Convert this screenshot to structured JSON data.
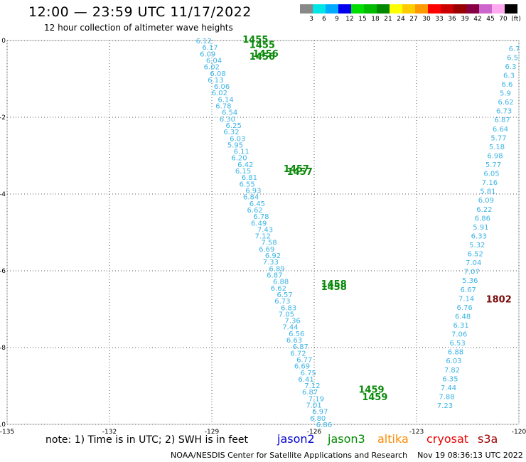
{
  "header": {
    "title": "12:00 — 23:59 UTC 11/17/2022",
    "subtitle": "12 hour collection of altimeter wave heights"
  },
  "color_scale": {
    "labels": [
      "3",
      "6",
      "9",
      "12",
      "15",
      "18",
      "21",
      "24",
      "27",
      "30",
      "33",
      "36",
      "39",
      "42",
      "45",
      "70",
      "(ft)"
    ],
    "colors": [
      "#888888",
      "#00e6e6",
      "#00aaff",
      "#0000ee",
      "#00dd00",
      "#00bb00",
      "#008800",
      "#ffff00",
      "#ffcc00",
      "#ff9900",
      "#ff0000",
      "#cc0000",
      "#990000",
      "#880044",
      "#cc66cc",
      "#ffaaee",
      "#000000"
    ]
  },
  "axes": {
    "x_ticks": [
      "-135",
      "-132",
      "-129",
      "-126",
      "-123",
      "-120"
    ],
    "y_ticks": [
      "0",
      "-2",
      "-4",
      "-6",
      "-8",
      "-10"
    ]
  },
  "map": {
    "lon_range": [
      -135,
      -120
    ],
    "lat_range": [
      -10,
      0
    ],
    "track_a": {
      "start": [
        -129.3,
        0.0
      ],
      "end": [
        -125.9,
        -10.0
      ],
      "swh_labels": [
        "6.12",
        "6.17",
        "6.09",
        "6.04",
        "6.02",
        "6.08",
        "6.13",
        "6.06",
        "6.02",
        "6.14",
        "6.78",
        "6.54",
        "6.30",
        "6.25",
        "6.32",
        "6.03",
        "5.95",
        "6.11",
        "6.20",
        "6.42",
        "6.15",
        "6.81",
        "6.55",
        "6.93",
        "6.84",
        "6.45",
        "6.62",
        "6.78",
        "6.49",
        "7.43",
        "7.12",
        "7.58",
        "6.69",
        "6.92",
        "7.33",
        "6.89",
        "6.87",
        "6.88",
        "6.62",
        "6.57",
        "6.73",
        "6.83",
        "7.05",
        "7.36",
        "7.44",
        "6.56",
        "6.63",
        "6.87",
        "6.72",
        "6.77",
        "6.69",
        "6.75",
        "6.41",
        "7.12",
        "6.87",
        "7.19",
        "7.01",
        "6.97",
        "6.80",
        "6.86"
      ],
      "passes": [
        {
          "label": "1455",
          "lon": -128.1,
          "lat": 0.02
        },
        {
          "label": "1455",
          "lon": -127.9,
          "lat": -0.12
        },
        {
          "label": "1456",
          "lon": -127.8,
          "lat": -0.35
        },
        {
          "label": "1456",
          "lon": -127.9,
          "lat": -0.43
        },
        {
          "label": "1457",
          "lon": -126.9,
          "lat": -3.35
        },
        {
          "label": "1457",
          "lon": -126.8,
          "lat": -3.43
        },
        {
          "label": "1458",
          "lon": -125.8,
          "lat": -6.35
        },
        {
          "label": "1458",
          "lon": -125.8,
          "lat": -6.43
        },
        {
          "label": "1459",
          "lon": -124.7,
          "lat": -9.1
        },
        {
          "label": "1459",
          "lon": -124.6,
          "lat": -9.3
        }
      ]
    },
    "track_b": {
      "swh_labels": [
        "6.7",
        "6.5",
        "6.3",
        "6.3",
        "6.6",
        "5.9",
        "6.62",
        "6.73",
        "6.87",
        "6.64",
        "5.77",
        "5.18",
        "6.98",
        "5.77",
        "6.05",
        "7.16",
        "5.81",
        "6.09",
        "6.22",
        "6.86",
        "5.91",
        "6.33",
        "5.32",
        "6.52",
        "7.04",
        "7.07",
        "5.36",
        "6.67",
        "7.14",
        "6.76",
        "6.48",
        "6.31",
        "7.06",
        "6.53",
        "6.88",
        "6.03",
        "7.82",
        "6.35",
        "7.44",
        "7.88",
        "7.23"
      ],
      "pass": {
        "label": "1802",
        "lon": -120.8,
        "lat": -6.75
      }
    }
  },
  "footer": {
    "note": "note:  1) Time is in UTC;  2) SWH is in feet",
    "satellites": [
      {
        "name": "jason2",
        "color": "#0000cc"
      },
      {
        "name": "jason3",
        "color": "#008800"
      },
      {
        "name": "altika",
        "color": "#ff8800"
      },
      {
        "name": "cryosat",
        "color": "#ee0000"
      },
      {
        "name": "s3a",
        "color": "#990000"
      }
    ],
    "credit": "NOAA/NESDIS Center for Satellite Applications and Research    Nov 19 08:36:13 UTC 2022"
  }
}
